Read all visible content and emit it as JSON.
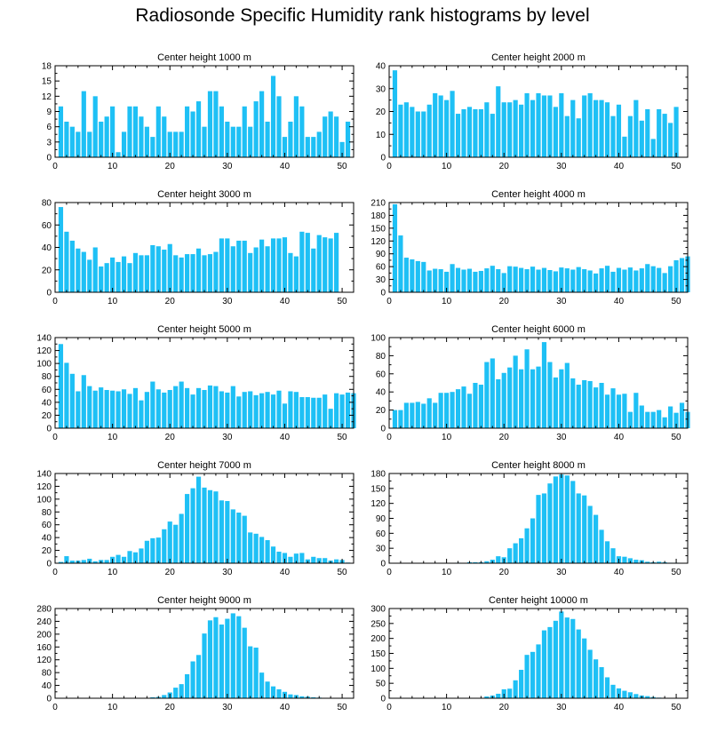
{
  "title": "Radiosonde Specific Humidity rank histograms by level",
  "bar_color": "#1ec0f5",
  "chart_data": [
    {
      "type": "bar",
      "title": "Center height 1000 m",
      "xlim": [
        0,
        52
      ],
      "xticks": [
        0,
        10,
        20,
        30,
        40,
        50
      ],
      "ylim": [
        0,
        18
      ],
      "yticks": [
        0,
        3,
        6,
        9,
        12,
        15,
        18
      ],
      "values": [
        10,
        7,
        6,
        5,
        13,
        5,
        12,
        7,
        8,
        10,
        1,
        5,
        10,
        10,
        8,
        6,
        4,
        10,
        8,
        5,
        5,
        5,
        10,
        9,
        11,
        6,
        13,
        13,
        10,
        7,
        6,
        6,
        10,
        6,
        11,
        13,
        7,
        16,
        12,
        4,
        7,
        12,
        10,
        4,
        4,
        5,
        8,
        9,
        8,
        3,
        7
      ]
    },
    {
      "type": "bar",
      "title": "Center height 2000 m",
      "xlim": [
        0,
        52
      ],
      "xticks": [
        0,
        10,
        20,
        30,
        40,
        50
      ],
      "ylim": [
        0,
        40
      ],
      "yticks": [
        0,
        10,
        20,
        30,
        40
      ],
      "values": [
        38,
        23,
        24,
        22,
        20,
        20,
        23,
        28,
        27,
        25,
        29,
        19,
        21,
        22,
        21,
        21,
        24,
        19,
        31,
        24,
        24,
        25,
        23,
        28,
        25,
        28,
        27,
        27,
        22,
        28,
        18,
        25,
        17,
        27,
        28,
        25,
        25,
        24,
        18,
        23,
        9,
        18,
        25,
        16,
        21,
        8,
        21,
        19,
        15,
        22
      ]
    },
    {
      "type": "bar",
      "title": "Center height 3000 m",
      "xlim": [
        0,
        52
      ],
      "xticks": [
        0,
        10,
        20,
        30,
        40,
        50
      ],
      "ylim": [
        0,
        80
      ],
      "yticks": [
        0,
        20,
        40,
        60,
        80
      ],
      "values": [
        76,
        54,
        46,
        39,
        36,
        29,
        40,
        23,
        26,
        31,
        27,
        32,
        26,
        35,
        33,
        33,
        42,
        41,
        38,
        43,
        33,
        31,
        34,
        34,
        39,
        33,
        34,
        36,
        48,
        48,
        41,
        46,
        46,
        35,
        40,
        47,
        41,
        48,
        48,
        49,
        35,
        32,
        54,
        53,
        39,
        51,
        49,
        48,
        53
      ]
    },
    {
      "type": "bar",
      "title": "Center height 4000 m",
      "xlim": [
        0,
        52
      ],
      "xticks": [
        0,
        10,
        20,
        30,
        40,
        50
      ],
      "ylim": [
        0,
        210
      ],
      "yticks": [
        0,
        30,
        60,
        90,
        120,
        150,
        180,
        210
      ],
      "values": [
        206,
        133,
        81,
        77,
        73,
        71,
        51,
        55,
        54,
        48,
        66,
        57,
        53,
        55,
        48,
        50,
        56,
        62,
        54,
        45,
        61,
        60,
        57,
        54,
        60,
        53,
        57,
        52,
        49,
        58,
        56,
        53,
        59,
        54,
        51,
        44,
        56,
        62,
        48,
        57,
        53,
        58,
        51,
        56,
        66,
        61,
        57,
        45,
        61,
        75,
        80,
        84
      ]
    },
    {
      "type": "bar",
      "title": "Center height 5000 m",
      "xlim": [
        0,
        52
      ],
      "xticks": [
        0,
        10,
        20,
        30,
        40,
        50
      ],
      "ylim": [
        0,
        140
      ],
      "yticks": [
        0,
        20,
        40,
        60,
        80,
        100,
        120,
        140
      ],
      "values": [
        130,
        101,
        84,
        57,
        82,
        65,
        58,
        63,
        59,
        58,
        57,
        60,
        53,
        62,
        43,
        56,
        72,
        60,
        55,
        59,
        65,
        72,
        62,
        52,
        62,
        59,
        66,
        65,
        57,
        55,
        65,
        49,
        56,
        57,
        51,
        54,
        56,
        52,
        58,
        38,
        57,
        56,
        48,
        48,
        47,
        47,
        52,
        30,
        54,
        52,
        55,
        54
      ]
    },
    {
      "type": "bar",
      "title": "Center height 6000 m",
      "xlim": [
        0,
        52
      ],
      "xticks": [
        0,
        10,
        20,
        30,
        40,
        50
      ],
      "ylim": [
        0,
        100
      ],
      "yticks": [
        0,
        20,
        40,
        60,
        80,
        100
      ],
      "values": [
        20,
        20,
        28,
        28,
        29,
        27,
        33,
        28,
        39,
        39,
        40,
        43,
        46,
        38,
        50,
        48,
        73,
        77,
        54,
        61,
        67,
        80,
        65,
        87,
        65,
        68,
        95,
        73,
        56,
        65,
        72,
        55,
        48,
        53,
        52,
        45,
        50,
        37,
        44,
        37,
        38,
        18,
        39,
        25,
        18,
        18,
        20,
        12,
        24,
        17,
        28,
        18
      ]
    },
    {
      "type": "bar",
      "title": "Center height 7000 m",
      "xlim": [
        0,
        52
      ],
      "xticks": [
        0,
        10,
        20,
        30,
        40,
        50
      ],
      "ylim": [
        0,
        140
      ],
      "yticks": [
        0,
        20,
        40,
        60,
        80,
        100,
        120,
        140
      ],
      "values": [
        2,
        11,
        4,
        4,
        5,
        7,
        3,
        5,
        5,
        10,
        13,
        10,
        19,
        17,
        23,
        35,
        39,
        40,
        53,
        65,
        60,
        77,
        108,
        117,
        135,
        118,
        114,
        112,
        98,
        97,
        84,
        79,
        74,
        48,
        46,
        41,
        36,
        26,
        18,
        16,
        10,
        15,
        16,
        6,
        10,
        8,
        8,
        4,
        6,
        5,
        1
      ]
    },
    {
      "type": "bar",
      "title": "Center height 8000 m",
      "xlim": [
        0,
        52
      ],
      "xticks": [
        0,
        10,
        20,
        30,
        40,
        50
      ],
      "ylim": [
        0,
        180
      ],
      "yticks": [
        0,
        30,
        60,
        90,
        120,
        150,
        180
      ],
      "values": [
        0,
        0,
        0,
        0,
        0,
        0,
        0,
        0,
        0,
        0,
        0,
        1,
        0,
        2,
        2,
        2,
        4,
        7,
        14,
        12,
        30,
        40,
        50,
        70,
        90,
        137,
        140,
        160,
        174,
        178,
        176,
        165,
        140,
        136,
        115,
        97,
        67,
        44,
        30,
        14,
        13,
        10,
        7,
        6,
        3,
        2,
        3,
        2,
        1,
        1,
        0,
        0
      ]
    },
    {
      "type": "bar",
      "title": "Center height 9000 m",
      "xlim": [
        0,
        52
      ],
      "xticks": [
        0,
        10,
        20,
        30,
        40,
        50
      ],
      "ylim": [
        0,
        280
      ],
      "yticks": [
        0,
        40,
        80,
        120,
        160,
        200,
        240,
        280
      ],
      "values": [
        0,
        0,
        0,
        0,
        0,
        0,
        0,
        0,
        0,
        0,
        0,
        0,
        0,
        0,
        1,
        1,
        3,
        4,
        10,
        18,
        33,
        44,
        75,
        115,
        135,
        202,
        243,
        253,
        230,
        248,
        265,
        256,
        220,
        162,
        158,
        80,
        52,
        37,
        28,
        20,
        12,
        10,
        6,
        5,
        3,
        2,
        1,
        1,
        0,
        0,
        0
      ]
    },
    {
      "type": "bar",
      "title": "Center height 10000 m",
      "xlim": [
        0,
        52
      ],
      "xticks": [
        0,
        10,
        20,
        30,
        40,
        50
      ],
      "ylim": [
        0,
        300
      ],
      "yticks": [
        0,
        50,
        100,
        150,
        200,
        250,
        300
      ],
      "values": [
        0,
        0,
        0,
        0,
        0,
        0,
        0,
        0,
        0,
        0,
        0,
        0,
        0,
        0,
        0,
        0,
        6,
        9,
        15,
        30,
        32,
        60,
        95,
        145,
        155,
        180,
        227,
        238,
        259,
        290,
        270,
        265,
        230,
        200,
        162,
        130,
        104,
        70,
        45,
        33,
        25,
        20,
        14,
        9,
        7,
        4,
        2,
        1,
        1,
        0,
        0
      ]
    }
  ]
}
